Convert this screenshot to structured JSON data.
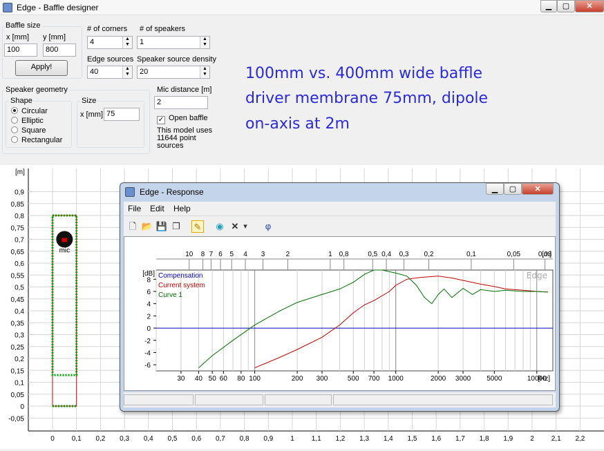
{
  "window": {
    "title": "Edge - Baffle designer",
    "min": "▁",
    "max": "▢",
    "close": "✕"
  },
  "baffle": {
    "group": "Baffle size",
    "x_label": "x [mm]",
    "y_label": "y [mm]",
    "x_value": "100",
    "y_value": "800",
    "apply": "Apply!"
  },
  "corners": {
    "label": "# of corners",
    "value": "4"
  },
  "speakers": {
    "label": "# of speakers",
    "value": "1"
  },
  "edge_sources": {
    "label": "Edge sources",
    "value": "40"
  },
  "source_density": {
    "label": "Speaker source density",
    "value": "20"
  },
  "geometry": {
    "group": "Speaker geometry",
    "shape_group": "Shape",
    "shapes": [
      "Circular",
      "Elliptic",
      "Square",
      "Rectangular"
    ],
    "selected": "Circular",
    "size_group": "Size",
    "size_label": "x [mm]",
    "size_value": "75"
  },
  "mic": {
    "label": "Mic distance [m]",
    "value": "2",
    "open_baffle": "Open baffle",
    "open_checked": true,
    "model_note": "This model uses 11644 point sources",
    "mic_label": "mic"
  },
  "annotation": [
    "100mm vs. 400mm wide baffle",
    "driver membrane 75mm, dipole",
    "on-axis at 2m"
  ],
  "main_plot": {
    "unit": "[m]",
    "y_ticks": [
      "0,9",
      "0,85",
      "0,8",
      "0,75",
      "0,7",
      "0,65",
      "0,6",
      "0,55",
      "0,5",
      "0,45",
      "0,4",
      "0,35",
      "0,3",
      "0,25",
      "0,2",
      "0,15",
      "0,1",
      "0,05",
      "0",
      "-0,05"
    ],
    "x_ticks": [
      "0",
      "0,1",
      "0,2",
      "0,3",
      "0,4",
      "0,5",
      "0,6",
      "0,7",
      "0,8",
      "0,9",
      "1",
      "1,1",
      "1,2",
      "1,3",
      "1,4",
      "1,5",
      "1,6",
      "1,7",
      "1,8",
      "1,9",
      "2",
      "2,1",
      "2,2"
    ]
  },
  "response": {
    "title": "Edge - Response",
    "menu": [
      "File",
      "Edit",
      "Help"
    ],
    "toolbar": {
      "icons": [
        "new-file-icon",
        "open-folder-icon",
        "save-icon",
        "copy-icon",
        "pencil-icon",
        "speaker-icon",
        "delete-icon",
        "dropdown-arrow-icon",
        "phi-icon"
      ],
      "phi": "φ",
      "delete": "✕",
      "dropdown": "▾"
    },
    "watermark": "Edge",
    "legend": [
      {
        "name": "Compensation",
        "color": "#0000c0"
      },
      {
        "name": "Current system",
        "color": "#c00000"
      },
      {
        "name": "Curve 1",
        "color": "#007000"
      }
    ],
    "db_label": "[dB]",
    "db_ticks": [
      "8",
      "6",
      "4",
      "2",
      "0",
      "-2",
      "-4",
      "-6"
    ],
    "hz_label": "[Hz]",
    "hz_ticks": [
      "30",
      "40",
      "50",
      "60",
      "80",
      "100",
      "200",
      "300",
      "500",
      "700",
      "1000",
      "2000",
      "3000",
      "5000",
      "10000"
    ],
    "m_label": "[m]",
    "m_ticks": [
      "10",
      "8",
      "7",
      "6",
      "5",
      "4",
      "3",
      "2",
      "1",
      "0,8",
      "0,5",
      "0,4",
      "0,3",
      "0,2",
      "0,1",
      "0,05",
      "0,03"
    ]
  },
  "chart_data": {
    "type": "line",
    "xlabel": "[Hz]",
    "ylabel": "[dB]",
    "x_scale": "log",
    "xlim": [
      20,
      13000
    ],
    "ylim": [
      -7,
      9.5
    ],
    "grid": true,
    "legend": "top-left",
    "series": [
      {
        "name": "Compensation",
        "color": "#0000c0",
        "x": [
          20,
          13000
        ],
        "y": [
          0,
          0
        ]
      },
      {
        "name": "Current system",
        "color": "#c00000",
        "x": [
          100,
          150,
          200,
          300,
          400,
          500,
          600,
          700,
          900,
          1000,
          1200,
          1500,
          2000,
          2500,
          3000,
          4000,
          5000,
          6000,
          8000,
          10000,
          12000
        ],
        "y": [
          -6.5,
          -4.8,
          -3.5,
          -1.5,
          0.5,
          2.5,
          3.8,
          4.5,
          6,
          7,
          8,
          8.3,
          8.5,
          8.2,
          7.8,
          7.2,
          6.8,
          6.4,
          6.2,
          6.0,
          5.9
        ]
      },
      {
        "name": "Curve 1",
        "color": "#007000",
        "x": [
          40,
          50,
          70,
          100,
          150,
          200,
          300,
          400,
          500,
          600,
          700,
          800,
          1000,
          1200,
          1400,
          1600,
          1800,
          2000,
          2200,
          2500,
          3000,
          3500,
          4000,
          5000,
          6000,
          8000,
          10000,
          12000
        ],
        "y": [
          -6.5,
          -4.5,
          -2.0,
          0.5,
          2.8,
          4.2,
          5.5,
          6.4,
          7.5,
          8.8,
          9.6,
          9.6,
          9.0,
          8.5,
          7.0,
          5.0,
          4.0,
          5.5,
          6.4,
          5.0,
          6.5,
          5.5,
          6.3,
          6.0,
          6.2,
          6.0,
          6.0,
          5.9
        ]
      }
    ]
  }
}
